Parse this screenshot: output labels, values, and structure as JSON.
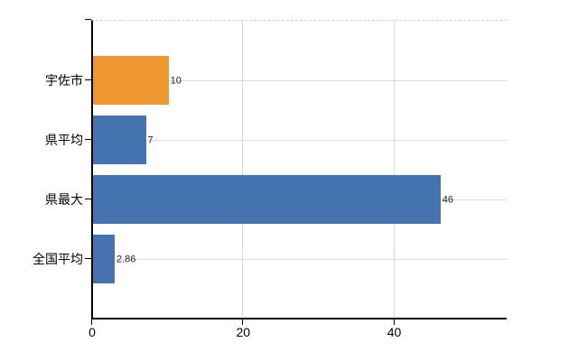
{
  "chart_data": {
    "type": "bar",
    "orientation": "horizontal",
    "title": "",
    "xlabel": "",
    "ylabel": "",
    "categories": [
      "宇佐市",
      "県平均",
      "県最大",
      "全国平均"
    ],
    "values": [
      10,
      7,
      46,
      2.86
    ],
    "value_labels": [
      "10",
      "7",
      "46",
      "2.86"
    ],
    "bar_colors": [
      "#ee9631",
      "#4473af",
      "#4473af",
      "#4473af"
    ],
    "x_ticks": [
      0,
      20,
      40
    ],
    "x_tick_labels": [
      "0",
      "20",
      "40"
    ],
    "xlim": [
      0,
      55
    ],
    "grid": true,
    "legend": null,
    "colors": {
      "highlight_orange": "#ee9631",
      "series_blue": "#4473af",
      "gridline": "#d9d9d9",
      "axis": "#000000",
      "background": "#ffffff"
    }
  }
}
